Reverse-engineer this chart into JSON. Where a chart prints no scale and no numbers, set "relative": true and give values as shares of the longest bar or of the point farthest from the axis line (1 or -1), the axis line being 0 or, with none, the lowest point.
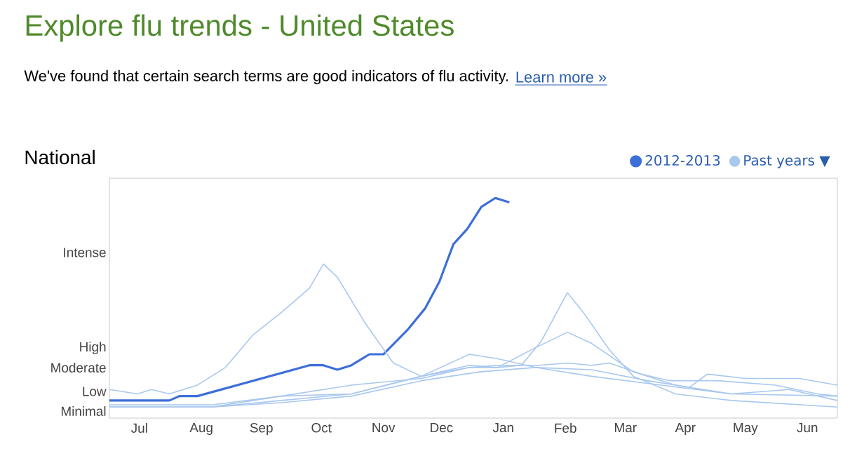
{
  "chart_data": {
    "type": "line",
    "title": "Explore flu trends - United States",
    "subtitle": "We've found that certain search terms are good indicators of flu activity.",
    "annotations": [
      "Learn more »",
      "National",
      "Minimal",
      "Low",
      "Moderate",
      "High",
      "Intense"
    ],
    "relative": true,
    "xlim": [
      "2012-07-01",
      "2013-06-30"
    ],
    "xticks": [
      {
        "value": "2012-07-16",
        "label": "Jul"
      },
      {
        "value": "2012-08-16",
        "label": "Aug"
      },
      {
        "value": "2012-09-15",
        "label": "Sep"
      },
      {
        "value": "2012-10-15",
        "label": "Oct"
      },
      {
        "value": "2012-11-15",
        "label": "Nov"
      },
      {
        "value": "2012-12-14",
        "label": "Dec"
      },
      {
        "value": "2013-01-14",
        "label": "Jan"
      },
      {
        "value": "2013-02-14",
        "label": "Feb"
      },
      {
        "value": "2013-03-16",
        "label": "Mar"
      },
      {
        "value": "2013-04-15",
        "label": "Apr"
      },
      {
        "value": "2013-05-15",
        "label": "May"
      },
      {
        "value": "2013-06-15",
        "label": "Jun"
      }
    ],
    "legend": "top right",
    "grid": false,
    "marker": "none",
    "line_style": "solid",
    "series": [
      {
        "name": "2012-2013",
        "color": "#3d6fd8",
        "x": [
          "2012-07-01",
          "2012-07-31",
          "2012-08-05",
          "2012-08-14",
          "2012-10-09",
          "2012-10-16",
          "2012-10-23",
          "2012-10-30",
          "2012-11-08",
          "2012-11-15",
          "2012-11-27",
          "2012-12-06",
          "2012-12-13",
          "2012-12-20",
          "2012-12-27",
          "2013-01-03",
          "2013-01-10",
          "2013-01-17"
        ],
        "values": [
          0.08,
          0.08,
          0.1,
          0.1,
          0.24,
          0.24,
          0.22,
          0.24,
          0.29,
          0.29,
          0.4,
          0.5,
          0.62,
          0.79,
          0.86,
          0.96,
          1.0,
          0.98
        ]
      },
      {
        "name": "Past years ▼",
        "color": "#a9c8ef",
        "x": [
          "2012-07-01",
          "2012-07-15",
          "2012-07-22",
          "2012-07-31",
          "2012-08-14",
          "2012-08-28",
          "2012-09-11",
          "2012-09-25",
          "2012-10-09",
          "2012-10-16",
          "2012-10-23",
          "2012-11-06",
          "2012-11-20",
          "2012-12-04",
          "2012-12-28",
          "2013-01-11",
          "2013-01-30",
          "2013-02-27",
          "2013-04-03",
          "2013-05-08",
          "2013-06-30"
        ],
        "values": [
          0.13,
          0.11,
          0.13,
          0.11,
          0.15,
          0.23,
          0.38,
          0.48,
          0.59,
          0.7,
          0.64,
          0.43,
          0.25,
          0.19,
          0.29,
          0.27,
          0.23,
          0.19,
          0.15,
          0.11,
          0.1
        ]
      },
      {
        "color": "#a9c8ef",
        "x": [
          "2012-07-01",
          "2012-08-21",
          "2012-09-25",
          "2012-10-30",
          "2012-12-04",
          "2012-12-28",
          "2013-01-11",
          "2013-01-23",
          "2013-02-02",
          "2013-02-15",
          "2013-02-23",
          "2013-03-08",
          "2013-03-20",
          "2013-04-10",
          "2013-05-08",
          "2013-06-30"
        ],
        "values": [
          0.06,
          0.06,
          0.1,
          0.15,
          0.18,
          0.23,
          0.23,
          0.24,
          0.35,
          0.57,
          0.48,
          0.31,
          0.19,
          0.11,
          0.08,
          0.05
        ]
      },
      {
        "color": "#a9c8ef",
        "x": [
          "2012-07-01",
          "2012-08-21",
          "2012-09-25",
          "2012-10-30",
          "2012-12-04",
          "2012-12-28",
          "2013-01-11",
          "2013-01-30",
          "2013-02-15",
          "2013-02-27",
          "2013-03-20",
          "2013-04-10",
          "2013-05-08",
          "2013-06-06",
          "2013-06-30"
        ],
        "values": [
          0.05,
          0.05,
          0.08,
          0.11,
          0.19,
          0.24,
          0.23,
          0.32,
          0.39,
          0.34,
          0.21,
          0.15,
          0.11,
          0.13,
          0.08
        ]
      },
      {
        "color": "#a9c8ef",
        "x": [
          "2012-07-01",
          "2012-08-21",
          "2012-09-25",
          "2012-10-30",
          "2012-12-04",
          "2012-12-28",
          "2013-01-11",
          "2013-02-01",
          "2013-02-15",
          "2013-02-27",
          "2013-03-08",
          "2013-03-24",
          "2013-04-07",
          "2013-05-01",
          "2013-05-30",
          "2013-06-20",
          "2013-06-30"
        ],
        "values": [
          0.05,
          0.05,
          0.1,
          0.11,
          0.19,
          0.23,
          0.24,
          0.24,
          0.25,
          0.24,
          0.25,
          0.2,
          0.17,
          0.17,
          0.15,
          0.11,
          0.1
        ]
      },
      {
        "color": "#a9c8ef",
        "x": [
          "2012-07-01",
          "2012-08-21",
          "2012-09-25",
          "2012-10-30",
          "2012-12-04",
          "2013-01-02",
          "2013-01-30",
          "2013-02-27",
          "2013-03-27",
          "2013-04-17",
          "2013-04-26",
          "2013-05-15",
          "2013-06-11",
          "2013-06-30"
        ],
        "values": [
          0.05,
          0.05,
          0.07,
          0.1,
          0.17,
          0.21,
          0.23,
          0.22,
          0.17,
          0.14,
          0.2,
          0.18,
          0.18,
          0.15
        ]
      }
    ]
  }
}
